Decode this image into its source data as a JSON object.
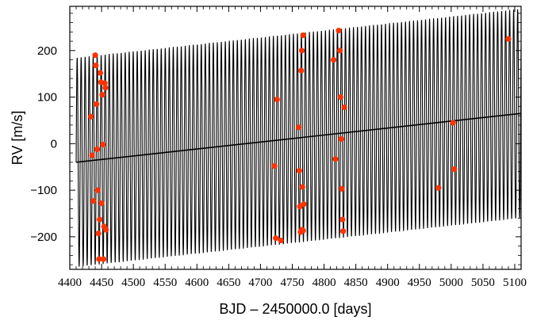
{
  "chart_data": {
    "type": "scatter",
    "xlabel": "BJD – 2450000.0 [days]",
    "ylabel": "RV [m/s]",
    "xlim": [
      4400,
      5110
    ],
    "ylim": [
      -270,
      295
    ],
    "x_ticks": [
      4400,
      4450,
      4500,
      4550,
      4600,
      4650,
      4700,
      4750,
      4800,
      4850,
      4900,
      4950,
      5000,
      5050,
      5100
    ],
    "y_ticks": [
      -200,
      -100,
      0,
      100,
      200
    ],
    "grid": false,
    "marker_color": "#ff3300",
    "model_color": "#000000",
    "model": {
      "trend_start": [
        4410,
        -40
      ],
      "trend_end": [
        5110,
        65
      ],
      "amplitude": 225,
      "period_days": 6.3,
      "t_start": 4410
    },
    "series": [
      {
        "points": [
          [
            4433,
            58
          ],
          [
            4435,
            -25
          ],
          [
            4437,
            -123
          ],
          [
            4440,
            190
          ],
          [
            4441,
            168
          ],
          [
            4442,
            85
          ],
          [
            4443,
            -12
          ],
          [
            4444,
            -100
          ],
          [
            4445,
            -193
          ],
          [
            4446,
            -248
          ],
          [
            4447,
            -163
          ],
          [
            4448,
            152
          ],
          [
            4449,
            132
          ],
          [
            4450,
            -128
          ],
          [
            4451,
            105
          ],
          [
            4452,
            -2
          ],
          [
            4453,
            -248
          ],
          [
            4454,
            -178
          ],
          [
            4455,
            130
          ],
          [
            4456,
            120
          ],
          [
            4457,
            -185
          ],
          [
            4722,
            -48
          ],
          [
            4724,
            -203
          ],
          [
            4726,
            95
          ],
          [
            4732,
            -208
          ],
          [
            4760,
            35
          ],
          [
            4761,
            -58
          ],
          [
            4762,
            -135
          ],
          [
            4763,
            -190
          ],
          [
            4764,
            157
          ],
          [
            4765,
            200
          ],
          [
            4766,
            -93
          ],
          [
            4767,
            233
          ],
          [
            4768,
            -130
          ],
          [
            4765,
            -185
          ],
          [
            4767,
            -187
          ],
          [
            4815,
            180
          ],
          [
            4818,
            -33
          ],
          [
            4823,
            243
          ],
          [
            4825,
            200
          ],
          [
            4826,
            100
          ],
          [
            4827,
            10
          ],
          [
            4828,
            -97
          ],
          [
            4829,
            -163
          ],
          [
            4830,
            -188
          ],
          [
            4832,
            78
          ],
          [
            4980,
            -95
          ],
          [
            5003,
            45
          ],
          [
            5005,
            -55
          ],
          [
            5090,
            225
          ]
        ]
      }
    ]
  }
}
